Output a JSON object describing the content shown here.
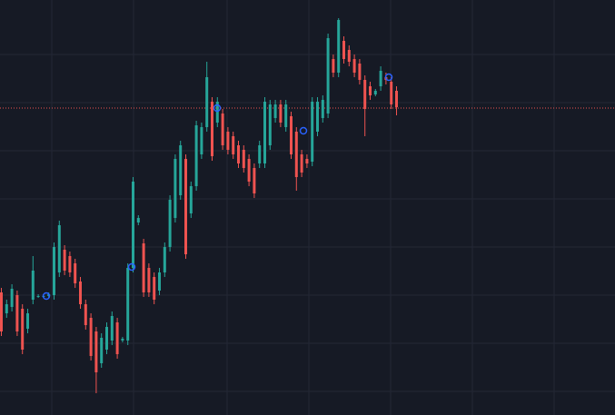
{
  "chart_data": {
    "type": "candlestick",
    "up_color": "#26a69a",
    "down_color": "#ef5350",
    "ylim": [
      0,
      457
    ],
    "price_line": 338,
    "price_line_color": "#ef5350",
    "open": [
      135,
      112,
      119,
      132,
      117,
      95,
      127,
      131,
      131,
      131,
      132,
      157,
      182,
      175,
      167,
      147,
      122,
      107,
      92,
      57,
      72,
      82,
      102,
      82,
      82,
      162,
      212,
      189,
      162,
      152,
      137,
      157,
      185,
      217,
      242,
      282,
      222,
      252,
      287,
      317,
      345,
      322,
      332,
      312,
      307,
      297,
      292,
      282,
      272,
      277,
      277,
      297,
      327,
      342,
      317,
      329,
      312,
      287,
      282,
      279,
      312,
      327,
      332,
      392,
      377,
      412,
      402,
      392,
      387,
      369,
      362,
      353,
      362,
      372,
      367,
      357
    ],
    "high": [
      140,
      127,
      144,
      137,
      122,
      117,
      175,
      133,
      133,
      135,
      190,
      214,
      187,
      180,
      172,
      152,
      127,
      112,
      97,
      90,
      102,
      114,
      107,
      86,
      167,
      262,
      220,
      194,
      167,
      157,
      162,
      190,
      242,
      287,
      302,
      287,
      257,
      324,
      322,
      389,
      350,
      350,
      337,
      317,
      312,
      302,
      297,
      287,
      277,
      302,
      350,
      347,
      347,
      347,
      347,
      334,
      317,
      292,
      287,
      350,
      350,
      352,
      420,
      397,
      437,
      417,
      407,
      397,
      392,
      374,
      367,
      359,
      384,
      377,
      372,
      362
    ],
    "low": [
      87,
      107,
      114,
      87,
      67,
      90,
      122,
      129,
      129,
      129,
      127,
      152,
      154,
      152,
      140,
      117,
      94,
      60,
      24,
      52,
      67,
      77,
      62,
      80,
      77,
      157,
      209,
      130,
      130,
      122,
      132,
      152,
      180,
      212,
      237,
      172,
      217,
      247,
      282,
      312,
      280,
      317,
      292,
      287,
      282,
      272,
      267,
      252,
      239,
      272,
      272,
      292,
      322,
      317,
      312,
      282,
      247,
      262,
      272,
      274,
      307,
      322,
      327,
      372,
      372,
      387,
      384,
      372,
      364,
      307,
      347,
      351,
      357,
      364,
      337,
      330
    ],
    "close": [
      92,
      122,
      139,
      92,
      72,
      112,
      159,
      131,
      131,
      133,
      185,
      209,
      159,
      157,
      145,
      122,
      99,
      65,
      47,
      85,
      97,
      109,
      67,
      84,
      162,
      257,
      217,
      135,
      135,
      127,
      157,
      185,
      237,
      282,
      297,
      177,
      252,
      319,
      317,
      372,
      285,
      345,
      297,
      292,
      287,
      277,
      272,
      257,
      244,
      297,
      345,
      342,
      342,
      322,
      342,
      287,
      262,
      267,
      277,
      345,
      345,
      347,
      415,
      377,
      435,
      392,
      389,
      377,
      369,
      337,
      352,
      357,
      379,
      369,
      342,
      339
    ]
  }
}
